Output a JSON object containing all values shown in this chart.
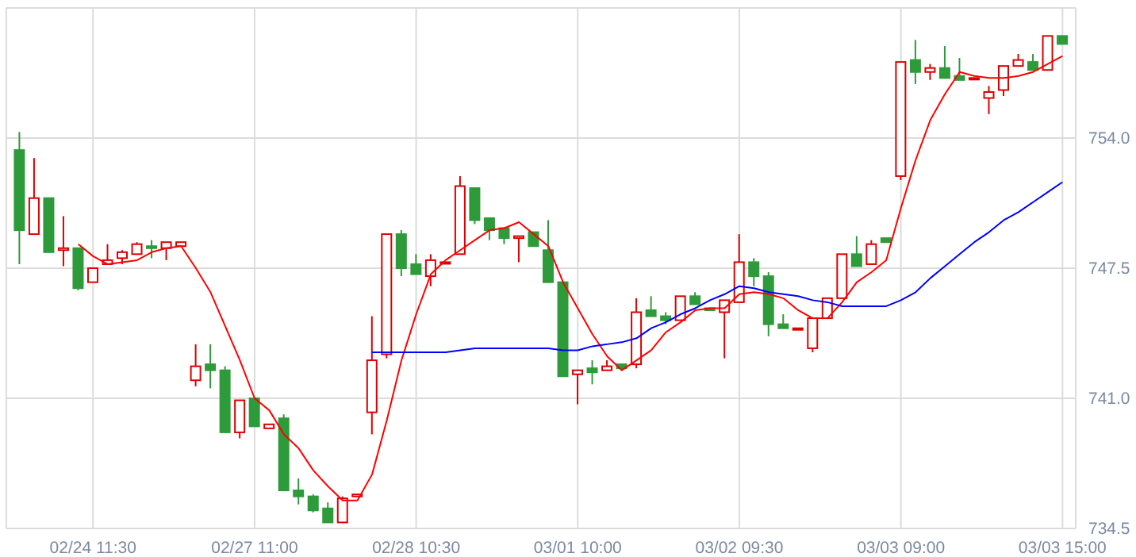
{
  "chart_data": {
    "type": "candlestick",
    "categories": [
      null,
      null,
      null,
      null,
      null,
      "02/24 11:30",
      null,
      null,
      null,
      null,
      null,
      null,
      null,
      null,
      null,
      null,
      "02/27 11:00",
      null,
      null,
      null,
      null,
      null,
      null,
      null,
      null,
      null,
      null,
      "02/28 10:30",
      null,
      null,
      null,
      null,
      null,
      null,
      null,
      null,
      null,
      null,
      "03/01 10:00",
      null,
      null,
      null,
      null,
      null,
      null,
      null,
      null,
      null,
      null,
      "03/02 09:30",
      null,
      null,
      null,
      null,
      null,
      null,
      null,
      null,
      null,
      null,
      "03/03 09:00",
      null,
      null,
      null,
      null,
      null,
      null,
      null,
      null,
      null,
      null,
      "03/03 15:00"
    ],
    "ylim": [
      734.5,
      760.5
    ],
    "yticks": [
      {
        "value": 734.5,
        "label": "734.5"
      },
      {
        "value": 741,
        "label": "741.0"
      },
      {
        "value": 747.5,
        "label": "747.5"
      },
      {
        "value": 754,
        "label": "754.0"
      }
    ],
    "grid": true,
    "series": [
      {
        "type": "candlestick",
        "colors": [
          "#2e9b3a",
          "#dd0000",
          "#2e9b3a",
          "#dd0000",
          "#2e9b3a",
          "#dd0000",
          "#dd0000",
          "#dd0000",
          "#dd0000",
          "#2e9b3a",
          "#dd0000",
          "#dd0000",
          "#dd0000",
          "#2e9b3a",
          "#2e9b3a",
          "#dd0000",
          "#2e9b3a",
          "#dd0000",
          "#2e9b3a",
          "#2e9b3a",
          "#2e9b3a",
          "#2e9b3a",
          "#dd0000",
          "#dd0000",
          "#dd0000",
          "#dd0000",
          "#2e9b3a",
          "#2e9b3a",
          "#dd0000",
          "#dd0000",
          "#dd0000",
          "#2e9b3a",
          "#2e9b3a",
          "#2e9b3a",
          "#dd0000",
          "#2e9b3a",
          "#2e9b3a",
          "#2e9b3a",
          "#dd0000",
          "#2e9b3a",
          "#dd0000",
          "#2e9b3a",
          "#dd0000",
          "#2e9b3a",
          "#2e9b3a",
          "#dd0000",
          "#2e9b3a",
          "#2e9b3a",
          "#dd0000",
          "#dd0000",
          "#2e9b3a",
          "#2e9b3a",
          "#2e9b3a",
          "#dd0000",
          "#dd0000",
          "#dd0000",
          "#dd0000",
          "#2e9b3a",
          "#dd0000",
          "#2e9b3a",
          "#dd0000",
          "#2e9b3a",
          "#dd0000",
          "#2e9b3a",
          "#2e9b3a",
          "#dd0000",
          "#dd0000",
          "#dd0000",
          "#dd0000",
          "#2e9b3a",
          "#dd0000",
          "#2e9b3a"
        ],
        "ohlc": [
          [
            753.4,
            754.3,
            747.7,
            749.4
          ],
          [
            749.2,
            753.0,
            749.2,
            751.0
          ],
          [
            751.0,
            751.0,
            748.3,
            748.3
          ],
          [
            748.4,
            750.1,
            747.6,
            748.5
          ],
          [
            748.5,
            748.5,
            746.4,
            746.5
          ],
          [
            746.8,
            747.5,
            746.8,
            747.5
          ],
          [
            747.7,
            748.7,
            747.7,
            747.9
          ],
          [
            748.0,
            748.4,
            747.7,
            748.3
          ],
          [
            748.2,
            748.8,
            748.2,
            748.7
          ],
          [
            748.6,
            748.9,
            748.0,
            748.5
          ],
          [
            748.5,
            748.8,
            747.9,
            748.8
          ],
          [
            748.6,
            748.8,
            748.6,
            748.8
          ],
          [
            741.9,
            743.7,
            741.6,
            742.6
          ],
          [
            742.7,
            743.7,
            741.5,
            742.4
          ],
          [
            742.4,
            742.6,
            739.3,
            739.3
          ],
          [
            739.3,
            740.9,
            739.0,
            740.9
          ],
          [
            741.0,
            741.0,
            739.6,
            739.6
          ],
          [
            739.5,
            739.7,
            739.5,
            739.7
          ],
          [
            740.0,
            740.2,
            736.4,
            736.4
          ],
          [
            736.4,
            737.0,
            735.7,
            736.1
          ],
          [
            736.1,
            736.2,
            735.3,
            735.4
          ],
          [
            735.5,
            735.8,
            734.8,
            734.8
          ],
          [
            734.8,
            736.1,
            734.8,
            736.0
          ],
          [
            736.1,
            736.2,
            736.1,
            736.2
          ],
          [
            740.3,
            745.1,
            739.2,
            742.9
          ],
          [
            743.2,
            749.2,
            743.0,
            749.2
          ],
          [
            749.2,
            749.4,
            747.1,
            747.5
          ],
          [
            747.7,
            748.2,
            747.2,
            747.2
          ],
          [
            747.1,
            748.2,
            746.6,
            747.9
          ],
          [
            747.8,
            747.8,
            747.8,
            747.8
          ],
          [
            748.2,
            752.1,
            748.2,
            751.6
          ],
          [
            751.5,
            751.5,
            749.7,
            749.9
          ],
          [
            750.0,
            750.0,
            748.9,
            749.4
          ],
          [
            749.5,
            749.5,
            748.7,
            749.0
          ],
          [
            749.0,
            749.1,
            747.8,
            749.1
          ],
          [
            749.3,
            749.3,
            748.6,
            748.6
          ],
          [
            748.4,
            749.9,
            746.8,
            746.8
          ],
          [
            746.8,
            746.8,
            742.1,
            742.1
          ],
          [
            742.2,
            742.4,
            740.7,
            742.4
          ],
          [
            742.5,
            742.9,
            741.7,
            742.3
          ],
          [
            742.4,
            742.9,
            742.4,
            742.6
          ],
          [
            742.7,
            742.7,
            742.5,
            742.5
          ],
          [
            742.7,
            746.0,
            742.5,
            745.3
          ],
          [
            745.4,
            746.1,
            745.1,
            745.1
          ],
          [
            745.1,
            745.3,
            744.7,
            744.9
          ],
          [
            744.9,
            746.1,
            744.9,
            746.1
          ],
          [
            746.1,
            746.3,
            745.7,
            745.7
          ],
          [
            745.5,
            745.5,
            745.4,
            745.4
          ],
          [
            745.3,
            745.9,
            743.0,
            745.9
          ],
          [
            745.8,
            749.2,
            745.8,
            747.8
          ],
          [
            747.8,
            748.0,
            746.6,
            747.1
          ],
          [
            747.1,
            747.3,
            744.1,
            744.7
          ],
          [
            744.7,
            745.2,
            744.5,
            744.5
          ],
          [
            744.5,
            744.5,
            744.5,
            744.5
          ],
          [
            743.5,
            745.0,
            743.3,
            745.0
          ],
          [
            745.0,
            746.0,
            745.0,
            746.0
          ],
          [
            746.0,
            748.2,
            746.0,
            748.2
          ],
          [
            748.2,
            749.1,
            747.6,
            747.6
          ],
          [
            747.7,
            748.9,
            747.7,
            748.7
          ],
          [
            749.0,
            749.0,
            748.8,
            748.8
          ],
          [
            752.1,
            757.8,
            751.9,
            757.8
          ],
          [
            757.9,
            758.9,
            756.7,
            757.3
          ],
          [
            757.3,
            757.7,
            756.9,
            757.5
          ],
          [
            757.5,
            758.6,
            757.0,
            757.0
          ],
          [
            757.1,
            758.0,
            756.9,
            756.9
          ],
          [
            757.0,
            757.0,
            757.0,
            757.0
          ],
          [
            756.0,
            756.6,
            755.2,
            756.3
          ],
          [
            756.4,
            757.6,
            756.1,
            757.6
          ],
          [
            757.6,
            758.2,
            757.6,
            757.9
          ],
          [
            757.8,
            758.2,
            757.4,
            757.4
          ],
          [
            757.4,
            759.1,
            757.4,
            759.1
          ],
          [
            759.1,
            759.1,
            758.7,
            758.7
          ]
        ]
      },
      {
        "type": "line",
        "color": "#ff0000",
        "values": [
          null,
          null,
          null,
          null,
          748.7,
          748.1,
          747.7,
          747.8,
          747.9,
          748.3,
          748.5,
          748.6,
          747.5,
          746.3,
          744.6,
          742.9,
          741.0,
          740.4,
          739.2,
          738.5,
          737.4,
          736.6,
          735.9,
          735.9,
          737.2,
          739.9,
          742.9,
          745.2,
          747.2,
          747.9,
          748.4,
          748.9,
          749.4,
          749.5,
          749.8,
          749.2,
          748.6,
          746.8,
          745.5,
          744.2,
          743.1,
          742.4,
          742.9,
          743.4,
          744.3,
          744.8,
          745.4,
          745.5,
          745.5,
          746.2,
          746.3,
          746.2,
          746.0,
          745.4,
          745.0,
          745.0,
          745.8,
          746.8,
          747.3,
          747.9,
          750.5,
          752.9,
          754.9,
          756.2,
          757.3,
          757.1,
          757.0,
          757.0,
          757.1,
          757.3,
          757.7,
          758.1
        ]
      },
      {
        "type": "line",
        "color": "#0000ff",
        "values": [
          null,
          null,
          null,
          null,
          null,
          null,
          null,
          null,
          null,
          null,
          null,
          null,
          null,
          null,
          null,
          null,
          null,
          null,
          null,
          null,
          null,
          null,
          null,
          null,
          743.3,
          743.3,
          743.3,
          743.3,
          743.3,
          743.3,
          743.4,
          743.5,
          743.5,
          743.5,
          743.5,
          743.5,
          743.5,
          743.4,
          743.4,
          743.6,
          743.7,
          743.8,
          744.0,
          744.5,
          744.8,
          745.2,
          745.5,
          745.9,
          746.2,
          746.6,
          746.5,
          746.3,
          746.2,
          746.1,
          745.9,
          745.8,
          745.6,
          745.6,
          745.6,
          745.6,
          745.9,
          746.3,
          747.0,
          747.6,
          748.2,
          748.8,
          749.3,
          749.9,
          750.3,
          750.8,
          751.3,
          751.8
        ]
      }
    ]
  }
}
